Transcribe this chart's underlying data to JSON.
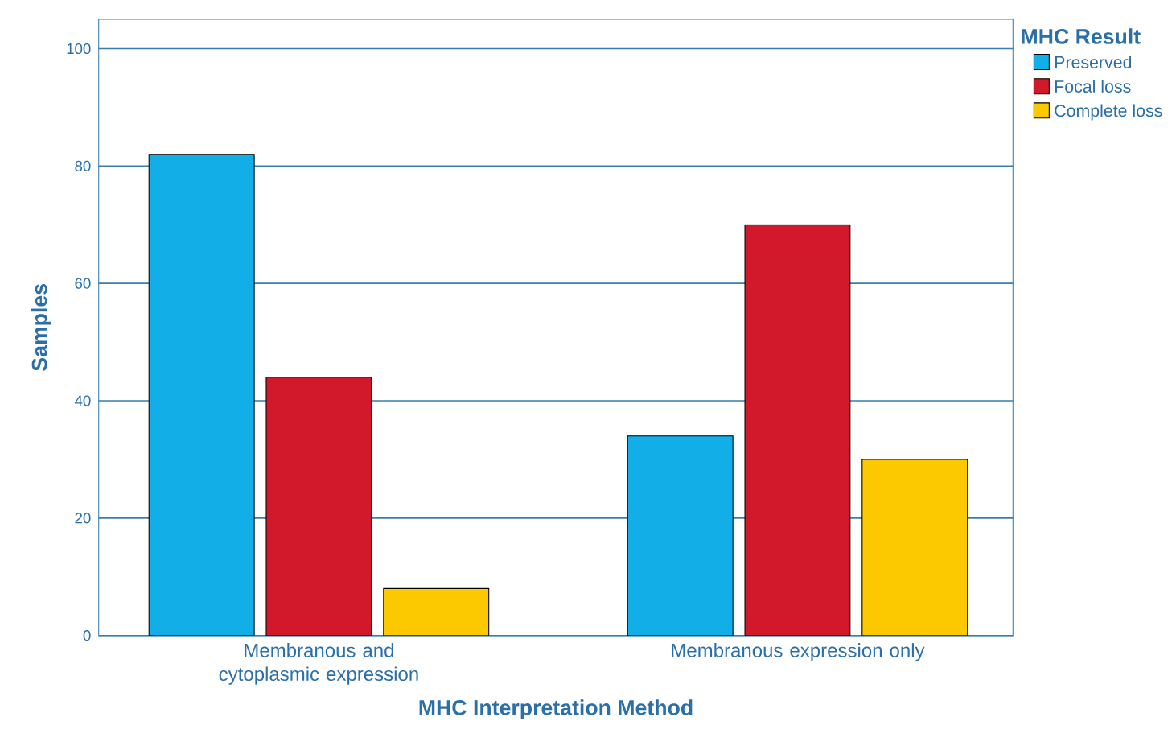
{
  "chart_data": {
    "type": "bar",
    "xlabel": "MHC Interpretation Method",
    "ylabel": "Samples",
    "legend_title": "MHC Result",
    "categories": [
      "Membranous and cytoplasmic expression",
      "Membranous expression only"
    ],
    "series": [
      {
        "name": "Preserved",
        "color": "#12aee8",
        "values": [
          82,
          34
        ]
      },
      {
        "name": "Focal loss",
        "color": "#d2192b",
        "values": [
          44,
          70
        ]
      },
      {
        "name": "Complete loss",
        "color": "#fcc800",
        "values": [
          8,
          30
        ]
      }
    ],
    "ylim": [
      0,
      105
    ],
    "yticks": [
      0,
      20,
      40,
      60,
      80,
      100
    ],
    "grid": "y",
    "legend": "right"
  }
}
